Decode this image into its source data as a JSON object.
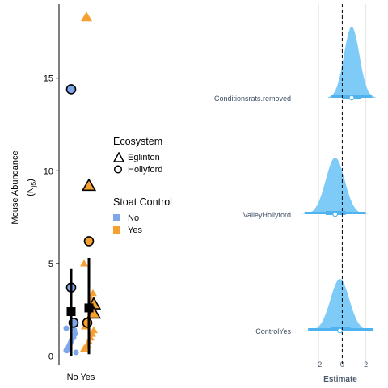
{
  "chart_data": [
    {
      "type": "scatter",
      "ylabel": "Mouse  Abundance",
      "ylabel_sub": "(N",
      "ylabel_sub_script": "j5",
      "ylabel_sub_close": ")",
      "xlabel": "",
      "categories": [
        "No",
        "Yes"
      ],
      "x_tick_label": "No Yes",
      "yticks": [
        0,
        5,
        10,
        15
      ],
      "ylim": [
        -0.5,
        19
      ],
      "grid": false,
      "colors": {
        "No": "#7da7e8",
        "Yes": "#f5a030"
      },
      "legend": {
        "placement": "right",
        "ecosystem_title": "Ecosystem",
        "ecosystem_items": [
          {
            "label": "Eglinton",
            "shape": "triangle"
          },
          {
            "label": "Hollyford",
            "shape": "circle"
          }
        ],
        "stoat_title": "Stoat Control",
        "stoat_items": [
          {
            "label": "No",
            "color": "#7da7e8"
          },
          {
            "label": "Yes",
            "color": "#f5a030"
          }
        ]
      },
      "summary": [
        {
          "group": "No",
          "mean": 2.4,
          "lower": 0.0,
          "upper": 4.7
        },
        {
          "group": "Yes",
          "mean": 2.6,
          "lower": 0.1,
          "upper": 5.3
        }
      ],
      "highlighted_points": [
        {
          "group": "No",
          "ecosystem": "Hollyford",
          "y": 14.4
        },
        {
          "group": "No",
          "ecosystem": "Hollyford",
          "y": 3.7
        },
        {
          "group": "No",
          "ecosystem": "Hollyford",
          "y": 1.8
        },
        {
          "group": "Yes",
          "ecosystem": "Eglinton",
          "y": 18.3
        },
        {
          "group": "Yes",
          "ecosystem": "Eglinton",
          "y": 9.2
        },
        {
          "group": "Yes",
          "ecosystem": "Hollyford",
          "y": 6.2
        },
        {
          "group": "Yes",
          "ecosystem": "Eglinton",
          "y": 2.8
        },
        {
          "group": "Yes",
          "ecosystem": "Eglinton",
          "y": 2.3
        },
        {
          "group": "Yes",
          "ecosystem": "Hollyford",
          "y": 1.8
        }
      ],
      "jitter_points": [
        {
          "group": "No",
          "ecosystem": "Hollyford",
          "ys": [
            1.5,
            1.2,
            1.0,
            0.9,
            0.7,
            0.5,
            0.3,
            0.2,
            1.4,
            1.1,
            0.8,
            0.6,
            0.4,
            0.3
          ]
        },
        {
          "group": "Yes",
          "ecosystem": "Eglinton",
          "ys": [
            5.0,
            3.4,
            3.1,
            2.6,
            2.0,
            1.8,
            1.6,
            1.4,
            1.2,
            1.0,
            0.8,
            0.6,
            0.5,
            0.4
          ]
        }
      ]
    },
    {
      "type": "area",
      "xlabel": "Estimate",
      "ylabel": "",
      "xticks": [
        -2,
        0,
        2
      ],
      "xlim": [
        -3.8,
        3.4
      ],
      "reference_line": 0,
      "grid": true,
      "color": "#7ecbf8",
      "interval_color": "#4fb3f0",
      "terms": [
        {
          "label": "Conditionsrats.removed",
          "mean": 0.8,
          "sd": 0.65,
          "inner": [
            0.0,
            1.6
          ],
          "outer": [
            -0.9,
            2.5
          ]
        },
        {
          "label": "ValleyHollyford",
          "mean": -0.6,
          "sd": 0.8,
          "inner": [
            -1.4,
            0.3
          ],
          "outer": [
            -3.2,
            2.0
          ]
        },
        {
          "label": "ControlYes",
          "mean": -0.2,
          "sd": 0.8,
          "inner": [
            -1.0,
            0.7
          ],
          "outer": [
            -2.9,
            2.6
          ]
        }
      ]
    }
  ]
}
